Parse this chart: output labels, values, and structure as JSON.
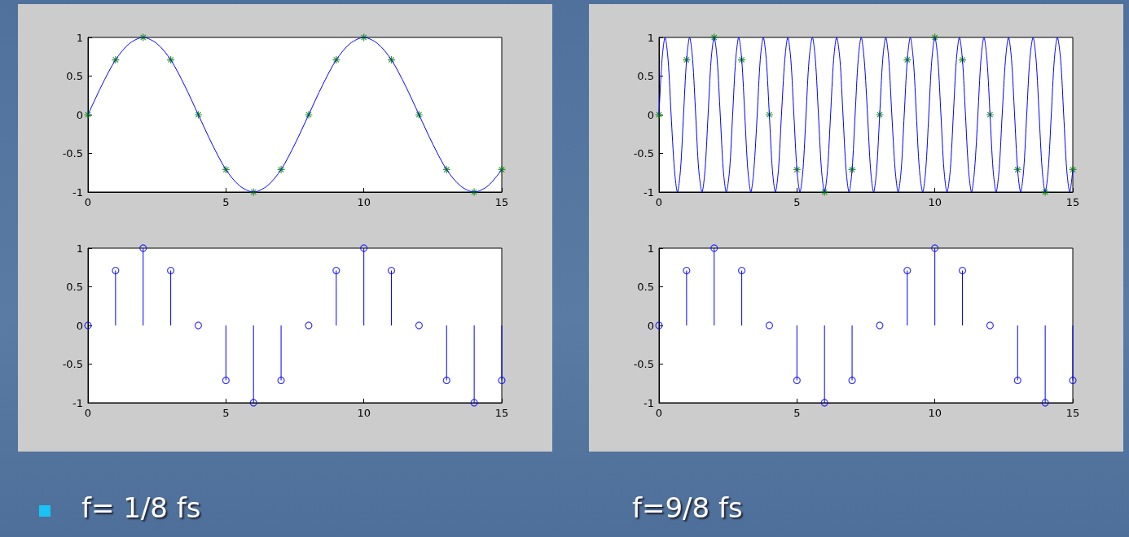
{
  "chart_data": [
    {
      "type": "line",
      "xlim": [
        0,
        15
      ],
      "xticks": [
        0,
        5,
        10,
        15
      ],
      "ylim": [
        -1,
        1
      ],
      "yticks": [
        -1,
        -0.5,
        0,
        0.5,
        1
      ],
      "grid": false,
      "series": [
        {
          "color": "#0000ff",
          "marker": "none",
          "x": [
            0,
            0.5,
            1,
            1.5,
            2,
            2.5,
            3,
            3.5,
            4,
            4.5,
            5,
            5.5,
            6,
            6.5,
            7,
            7.5,
            8,
            8.5,
            9,
            9.5,
            10,
            10.5,
            11,
            11.5,
            12,
            12.5,
            13,
            13.5,
            14,
            14.5,
            15
          ],
          "values": [
            0,
            0.38,
            0.71,
            0.92,
            1,
            0.92,
            0.71,
            0.38,
            0,
            -0.38,
            -0.71,
            -0.92,
            -1,
            -0.92,
            -0.71,
            -0.38,
            0,
            0.38,
            0.71,
            0.92,
            1,
            0.92,
            0.71,
            0.38,
            0,
            -0.38,
            -0.71,
            -0.92,
            -1,
            -0.92,
            -0.71
          ]
        },
        {
          "type": "scatter",
          "color": "#008000",
          "marker": "cross",
          "x": [
            0,
            1,
            2,
            3,
            4,
            5,
            6,
            7,
            8,
            9,
            10,
            11,
            12,
            13,
            14,
            15
          ],
          "values": [
            0,
            0.71,
            1,
            0.71,
            0,
            -0.71,
            -1,
            -0.71,
            0,
            0.71,
            1,
            0.71,
            0,
            -0.71,
            -1,
            -0.71
          ]
        }
      ]
    },
    {
      "type": "line",
      "xlim": [
        0,
        15
      ],
      "xticks": [
        0,
        5,
        10,
        15
      ],
      "ylim": [
        -1,
        1
      ],
      "yticks": [
        -1,
        -0.5,
        0,
        0.5,
        1
      ],
      "grid": false,
      "series": [
        {
          "color": "#0000ff",
          "marker": "none",
          "x": [
            0,
            0.11,
            0.22,
            0.33,
            0.44,
            0.56,
            0.67,
            0.78,
            0.89,
            1,
            1.11,
            1.22,
            1.33,
            1.44,
            1.56,
            1.67,
            1.78,
            1.89,
            2,
            2.11,
            2.22,
            2.33,
            2.44,
            2.56,
            2.67,
            2.78,
            2.89,
            3,
            3.11,
            3.22,
            3.33,
            3.44,
            3.56,
            3.67,
            3.78,
            3.89,
            4,
            4.11,
            4.22,
            4.33,
            4.44,
            4.56,
            4.67,
            4.78,
            4.89,
            5,
            5.11,
            5.22,
            5.33,
            5.44,
            5.56,
            5.67,
            5.78,
            5.89,
            6,
            6.11,
            6.22,
            6.33,
            6.44,
            6.56,
            6.67,
            6.78,
            6.89,
            7,
            7.11,
            7.22,
            7.33,
            7.44,
            7.56,
            7.67,
            7.78,
            7.89,
            8,
            8.11,
            8.22,
            8.33,
            8.44,
            8.56,
            8.67,
            8.78,
            8.89,
            9,
            9.11,
            9.22,
            9.33,
            9.44,
            9.56,
            9.67,
            9.78,
            9.89,
            10,
            10.11,
            10.22,
            10.33,
            10.44,
            10.56,
            10.67,
            10.78,
            10.89,
            11,
            11.11,
            11.22,
            11.33,
            11.44,
            11.56,
            11.67,
            11.78,
            11.89,
            12,
            12.11,
            12.22,
            12.33,
            12.44,
            12.56,
            12.67,
            12.78,
            12.89,
            13,
            13.11,
            13.22,
            13.33,
            13.44,
            13.56,
            13.67,
            13.78,
            13.89,
            14,
            14.11,
            14.22,
            14.33,
            14.44,
            14.56,
            14.67,
            14.78,
            14.89,
            15
          ],
          "values": [
            0,
            0.71,
            1,
            0.71,
            0,
            -0.71,
            -1,
            -0.71,
            0,
            0.71,
            1,
            0.71,
            0,
            -0.71,
            -1,
            -0.71,
            0,
            0.71,
            1,
            0.71,
            0,
            -0.71,
            -1,
            -0.71,
            0,
            0.71,
            1,
            0.71,
            0,
            -0.71,
            -1,
            -0.71,
            0,
            0.71,
            1,
            0.71,
            0,
            -0.71,
            -1,
            -0.71,
            0,
            0.71,
            1,
            0.71,
            0,
            -0.71,
            -1,
            -0.71,
            0,
            0.71,
            1,
            0.71,
            0,
            -0.71,
            -1,
            -0.71,
            0,
            0.71,
            1,
            0.71,
            0,
            -0.71,
            -1,
            -0.71,
            0,
            0.71,
            1,
            0.71,
            0,
            -0.71,
            -1,
            -0.71,
            0,
            0.71,
            1,
            0.71,
            0,
            -0.71,
            -1,
            -0.71,
            0,
            0.71,
            1,
            0.71,
            0,
            -0.71,
            -1,
            -0.71,
            0,
            0.71,
            1,
            0.71,
            0,
            -0.71,
            -1,
            -0.71,
            0,
            0.71,
            1,
            0.71,
            0,
            -0.71,
            -1,
            -0.71,
            0,
            0.71,
            1,
            0.71,
            0,
            -0.71,
            -1,
            -0.71,
            0,
            0.71,
            1,
            0.71,
            0,
            -0.71,
            -1,
            -0.71,
            0,
            0.71,
            1,
            0.71,
            0,
            -0.71,
            -1,
            -0.71,
            0,
            0.71,
            1,
            0.71,
            0,
            -0.71,
            -1,
            -0.71
          ]
        },
        {
          "type": "scatter",
          "color": "#008000",
          "marker": "cross",
          "x": [
            0,
            1,
            2,
            3,
            4,
            5,
            6,
            7,
            8,
            9,
            10,
            11,
            12,
            13,
            14,
            15
          ],
          "values": [
            0,
            0.71,
            1,
            0.71,
            0,
            -0.71,
            -1,
            -0.71,
            0,
            0.71,
            1,
            0.71,
            0,
            -0.71,
            -1,
            -0.71
          ]
        }
      ]
    },
    {
      "type": "lollipop",
      "xlim": [
        0,
        15
      ],
      "xticks": [
        0,
        5,
        10,
        15
      ],
      "ylim": [
        -1,
        1
      ],
      "yticks": [
        -1,
        -0.5,
        0,
        0.5,
        1
      ],
      "grid": false,
      "marker": "circle",
      "annotations": [
        "f= 1/8 fs"
      ],
      "series": [
        {
          "color": "#0000ff",
          "x": [
            0,
            1,
            2,
            3,
            4,
            5,
            6,
            7,
            8,
            9,
            10,
            11,
            12,
            13,
            14,
            15
          ],
          "values": [
            0,
            0.71,
            1,
            0.71,
            0,
            -0.71,
            -1,
            -0.71,
            0,
            0.71,
            1,
            0.71,
            0,
            -0.71,
            -1,
            -0.71
          ]
        }
      ]
    },
    {
      "type": "lollipop",
      "xlim": [
        0,
        15
      ],
      "xticks": [
        0,
        5,
        10,
        15
      ],
      "ylim": [
        -1,
        1
      ],
      "yticks": [
        -1,
        -0.5,
        0,
        0.5,
        1
      ],
      "grid": false,
      "marker": "circle",
      "annotations": [
        "f=9/8 fs"
      ],
      "series": [
        {
          "color": "#0000ff",
          "x": [
            0,
            1,
            2,
            3,
            4,
            5,
            6,
            7,
            8,
            9,
            10,
            11,
            12,
            13,
            14,
            15
          ],
          "values": [
            0,
            0.71,
            1,
            0.71,
            0,
            -0.71,
            -1,
            -0.71,
            0,
            0.71,
            1,
            0.71,
            0,
            -0.71,
            -1,
            -0.71
          ]
        }
      ]
    }
  ]
}
